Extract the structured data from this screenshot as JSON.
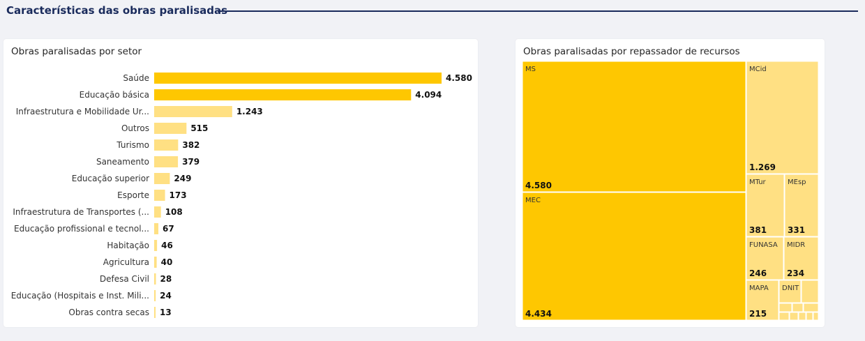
{
  "header": {
    "title": "Características das obras paralisadas"
  },
  "colors": {
    "highlight": "#fec701",
    "normal": "#ffe083",
    "heading": "#1a2b5c"
  },
  "chart_data": [
    {
      "type": "bar",
      "orientation": "horizontal",
      "title": "Obras paralisadas por setor",
      "categories": [
        "Saúde",
        "Educação básica",
        "Infraestrutura e Mobilidade Ur...",
        "Outros",
        "Turismo",
        "Saneamento",
        "Educação superior",
        "Esporte",
        "Infraestrutura de Transportes (...",
        "Educação profissional e tecnol...",
        "Habitação",
        "Agricultura",
        "Defesa Civil",
        "Educação (Hospitais e Inst. Mili...",
        "Obras contra secas"
      ],
      "values": [
        4580,
        4094,
        1243,
        515,
        382,
        379,
        249,
        173,
        108,
        67,
        46,
        40,
        28,
        24,
        13
      ],
      "labels": [
        "4.580",
        "4.094",
        "1.243",
        "515",
        "382",
        "379",
        "249",
        "173",
        "108",
        "67",
        "46",
        "40",
        "28",
        "24",
        "13"
      ],
      "highlighted": [
        "Saúde",
        "Educação básica"
      ],
      "xlim": [
        0,
        4580
      ]
    },
    {
      "type": "treemap",
      "title": "Obras paralisadas por repassador de recursos",
      "items": [
        {
          "name": "MS",
          "label": "4.580",
          "value": 4580,
          "highlight": true
        },
        {
          "name": "MEC",
          "label": "4.434",
          "value": 4434,
          "highlight": true
        },
        {
          "name": "MCid",
          "label": "1.269",
          "value": 1269,
          "highlight": false
        },
        {
          "name": "MTur",
          "label": "381",
          "value": 381,
          "highlight": false
        },
        {
          "name": "MEsp",
          "label": "331",
          "value": 331,
          "highlight": false
        },
        {
          "name": "FUNASA",
          "label": "246",
          "value": 246,
          "highlight": false
        },
        {
          "name": "MIDR",
          "label": "234",
          "value": 234,
          "highlight": false
        },
        {
          "name": "MAPA",
          "label": "215",
          "value": 215,
          "highlight": false
        },
        {
          "name": "DNIT",
          "label": "",
          "value": 108,
          "highlight": false
        }
      ]
    }
  ]
}
